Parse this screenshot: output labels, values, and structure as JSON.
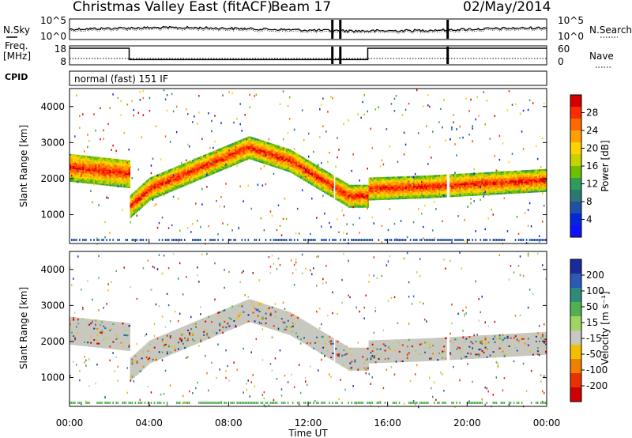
{
  "header": {
    "title": "Christmas Valley East (fitACF)",
    "beam": "Beam 17",
    "date": "02/May/2014"
  },
  "side_labels": {
    "nsky": "N.Sky",
    "nsearch": "N.Search",
    "freq_line1": "Freq.",
    "freq_line2": "[MHz]",
    "nave": "Nave",
    "cpid": "CPID",
    "cpid_value": "normal (fast) 151 IF"
  },
  "colors": {
    "frame": "#000000",
    "background": "#ffffff",
    "ground_scatter": "#c8c8c0"
  },
  "chart_data": [
    {
      "type": "line",
      "panel": "noise",
      "left_ticks": [
        "10^5",
        "10^0"
      ],
      "right_ticks": [
        "10^5",
        "10^0"
      ]
    },
    {
      "type": "line",
      "panel": "frequency",
      "left_ticks": [
        "18",
        "8"
      ],
      "right_ticks": [
        "60",
        "0"
      ],
      "freq_steps": [
        {
          "from": 0,
          "to": 3.0,
          "mhz": 18
        },
        {
          "from": 3.0,
          "to": 15.0,
          "mhz": 10
        },
        {
          "from": 15.0,
          "to": 24.0,
          "mhz": 18
        }
      ],
      "gaps": [
        13.2,
        13.6,
        19.0
      ]
    },
    {
      "type": "heatmap",
      "panel": "power",
      "ylabel": "Slant Range [km]",
      "yticks": [
        1000,
        2000,
        3000,
        4000
      ],
      "ylim": [
        200,
        4500
      ],
      "xlim": [
        0,
        24
      ],
      "colorbar": {
        "label": "Power [dB]",
        "ticks": [
          "28",
          "24",
          "20",
          "16",
          "12",
          "8",
          "4"
        ],
        "colors": [
          "#d40000",
          "#ff2a00",
          "#ff6a00",
          "#ffa000",
          "#ffd200",
          "#c8d200",
          "#6cc000",
          "#2f9a5a",
          "#2b7870",
          "#1f4fa8",
          "#0028d8",
          "#1010ff"
        ]
      }
    },
    {
      "type": "heatmap",
      "panel": "velocity",
      "ylabel": "Slant Range [km]",
      "yticks": [
        1000,
        2000,
        3000,
        4000
      ],
      "ylim": [
        200,
        4500
      ],
      "xlim": [
        0,
        24
      ],
      "colorbar": {
        "label": "Velocity [m s⁻¹]",
        "ticks": [
          "200",
          "100",
          "50",
          "15",
          "-15",
          "-50",
          "-100",
          "-200"
        ],
        "colors": [
          "#1a2a9a",
          "#2a5ab4",
          "#2f8a7a",
          "#52b050",
          "#9ed460",
          "#c8c8c0",
          "#f0c000",
          "#f08000",
          "#e83000",
          "#d00000"
        ]
      },
      "xticks": [
        "00:00",
        "04:00",
        "08:00",
        "12:00",
        "16:00",
        "20:00",
        "00:00"
      ],
      "xlabel": "Time UT"
    }
  ]
}
